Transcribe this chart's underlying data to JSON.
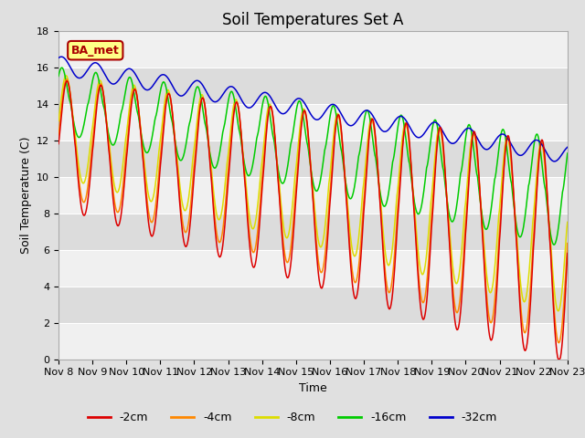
{
  "title": "Soil Temperatures Set A",
  "xlabel": "Time",
  "ylabel": "Soil Temperature (C)",
  "ylim": [
    0,
    18
  ],
  "xtick_labels": [
    "Nov 8",
    "Nov 9",
    "Nov 10",
    "Nov 11",
    "Nov 12",
    "Nov 13",
    "Nov 14",
    "Nov 15",
    "Nov 16",
    "Nov 17",
    "Nov 18",
    "Nov 19",
    "Nov 20",
    "Nov 21",
    "Nov 22",
    "Nov 23"
  ],
  "legend_labels": [
    "-2cm",
    "-4cm",
    "-8cm",
    "-16cm",
    "-32cm"
  ],
  "colors": [
    "#dd0000",
    "#ff8800",
    "#dddd00",
    "#00cc00",
    "#0000cc"
  ],
  "label_text": "BA_met",
  "title_fontsize": 12,
  "axis_fontsize": 9,
  "tick_fontsize": 8,
  "bg_color": "#e0e0e0",
  "band_light": "#f0f0f0",
  "band_dark": "#dcdcdc"
}
